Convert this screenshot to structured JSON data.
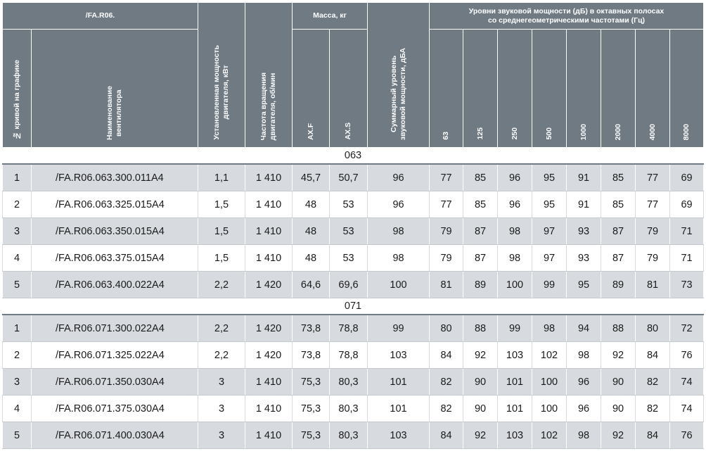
{
  "header": {
    "series_title": "/FA.R06.",
    "col_curve_no": "№ кривой на графике",
    "col_name": "Наименование\nвентилятора",
    "col_power": "Установленная мощность\nдвигателя, кВт",
    "col_speed": "Частота вращения\nдвигателя, об/мин",
    "mass_group": "Масса, кг",
    "mass_axf": "AX.F",
    "mass_axs": "AX.S",
    "col_total_sound": "Суммарный уровень\nзвуковой мощности, дБА",
    "octave_group": "Уровни звуковой мощности (дБ) в октавных полосах\nсо среднегеометрическими частотами (Гц)",
    "freqs": [
      "63",
      "125",
      "250",
      "500",
      "1000",
      "2000",
      "4000",
      "8000"
    ]
  },
  "groups": [
    {
      "label": "063",
      "rows": [
        {
          "n": "1",
          "name": "/FA.R06.063.300.011A4",
          "power": "1,1",
          "speed": "1 410",
          "axf": "45,7",
          "axs": "50,7",
          "total": "96",
          "oct": [
            "77",
            "85",
            "96",
            "95",
            "91",
            "85",
            "77",
            "69"
          ]
        },
        {
          "n": "2",
          "name": "/FA.R06.063.325.015A4",
          "power": "1,5",
          "speed": "1 410",
          "axf": "48",
          "axs": "53",
          "total": "96",
          "oct": [
            "77",
            "85",
            "96",
            "95",
            "91",
            "85",
            "77",
            "69"
          ]
        },
        {
          "n": "3",
          "name": "/FA.R06.063.350.015A4",
          "power": "1,5",
          "speed": "1 410",
          "axf": "48",
          "axs": "53",
          "total": "98",
          "oct": [
            "79",
            "87",
            "98",
            "97",
            "93",
            "87",
            "79",
            "71"
          ]
        },
        {
          "n": "4",
          "name": "/FA.R06.063.375.015A4",
          "power": "1,5",
          "speed": "1 410",
          "axf": "48",
          "axs": "53",
          "total": "98",
          "oct": [
            "79",
            "87",
            "98",
            "97",
            "93",
            "87",
            "79",
            "71"
          ]
        },
        {
          "n": "5",
          "name": "/FA.R06.063.400.022A4",
          "power": "2,2",
          "speed": "1 420",
          "axf": "64,6",
          "axs": "69,6",
          "total": "100",
          "oct": [
            "81",
            "89",
            "100",
            "99",
            "95",
            "89",
            "81",
            "73"
          ]
        }
      ]
    },
    {
      "label": "071",
      "rows": [
        {
          "n": "1",
          "name": "/FA.R06.071.300.022A4",
          "power": "2,2",
          "speed": "1 420",
          "axf": "73,8",
          "axs": "78,8",
          "total": "99",
          "oct": [
            "80",
            "88",
            "99",
            "98",
            "94",
            "88",
            "80",
            "72"
          ]
        },
        {
          "n": "2",
          "name": "/FA.R06.071.325.022A4",
          "power": "2,2",
          "speed": "1 420",
          "axf": "73,8",
          "axs": "78,8",
          "total": "103",
          "oct": [
            "84",
            "92",
            "103",
            "102",
            "98",
            "92",
            "84",
            "76"
          ]
        },
        {
          "n": "3",
          "name": "/FA.R06.071.350.030A4",
          "power": "3",
          "speed": "1 410",
          "axf": "75,3",
          "axs": "80,3",
          "total": "101",
          "oct": [
            "82",
            "90",
            "101",
            "100",
            "96",
            "90",
            "82",
            "74"
          ]
        },
        {
          "n": "4",
          "name": "/FA.R06.071.375.030A4",
          "power": "3",
          "speed": "1 410",
          "axf": "75,3",
          "axs": "80,3",
          "total": "101",
          "oct": [
            "82",
            "90",
            "101",
            "100",
            "96",
            "90",
            "82",
            "74"
          ]
        },
        {
          "n": "5",
          "name": "/FA.R06.071.400.030A4",
          "power": "3",
          "speed": "1 410",
          "axf": "75,3",
          "axs": "80,3",
          "total": "103",
          "oct": [
            "84",
            "92",
            "103",
            "102",
            "98",
            "92",
            "84",
            "76"
          ]
        }
      ]
    }
  ]
}
